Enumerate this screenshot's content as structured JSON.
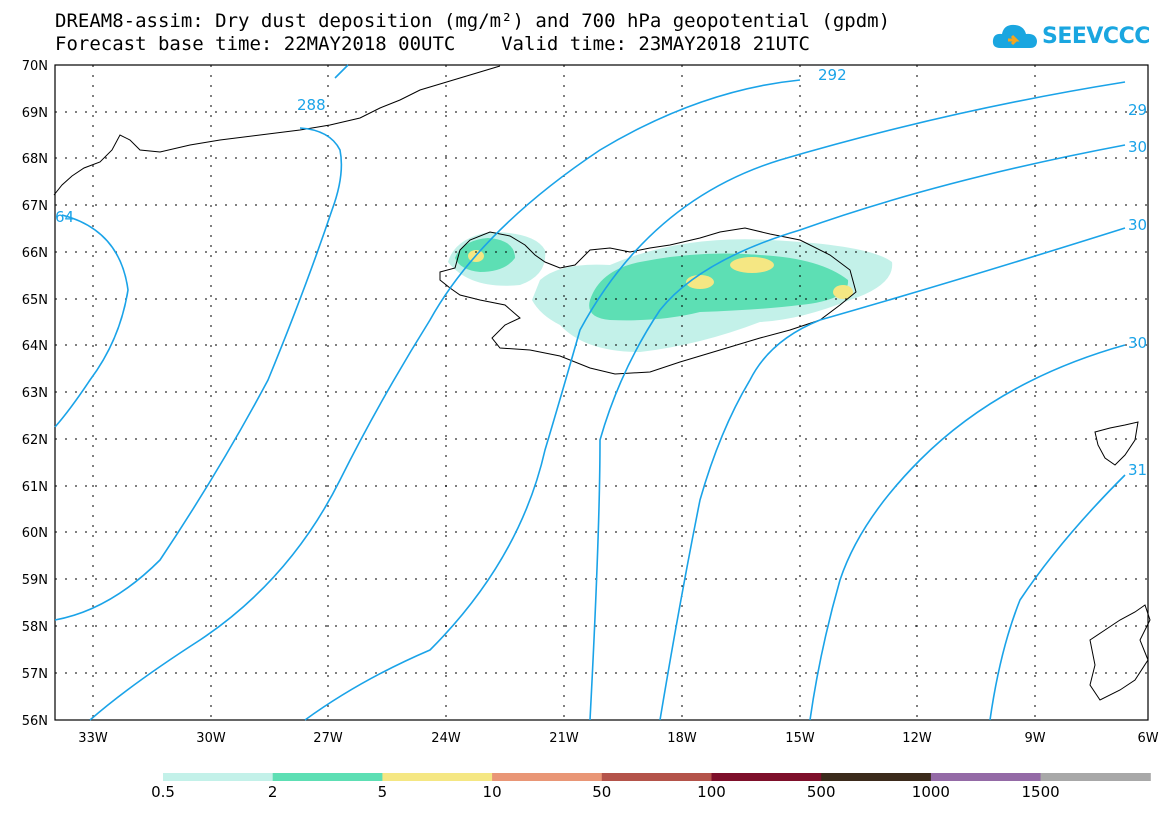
{
  "title": {
    "line1": "DREAM8-assim: Dry dust deposition (mg/m²) and 700 hPa geopotential (gpdm)",
    "line2": "Forecast base time: 22MAY2018 00UTC    Valid time: 23MAY2018 21UTC"
  },
  "logo": {
    "text": "SEEVCCC",
    "color": "#1aa6e0"
  },
  "axes": {
    "lat_labels": [
      "70N",
      "69N",
      "68N",
      "67N",
      "66N",
      "65N",
      "64N",
      "63N",
      "62N",
      "61N",
      "60N",
      "59N",
      "58N",
      "57N",
      "56N"
    ],
    "lon_labels": [
      "33W",
      "30W",
      "27W",
      "24W",
      "21W",
      "18W",
      "15W",
      "12W",
      "9W",
      "6W"
    ]
  },
  "contour_labels": [
    "288",
    "292",
    "29",
    "30",
    "30",
    "30",
    "31",
    "64"
  ],
  "colorbar": {
    "colors": [
      "#c3f1e9",
      "#5ddfb4",
      "#f5e783",
      "#e99676",
      "#b4534a",
      "#7e0f2a",
      "#3b2a1b",
      "#946aa6",
      "#a8a8a8"
    ],
    "labels": [
      "0.5",
      "2",
      "5",
      "10",
      "50",
      "100",
      "500",
      "1000",
      "1500"
    ]
  },
  "line_color": "#1aa3e8"
}
